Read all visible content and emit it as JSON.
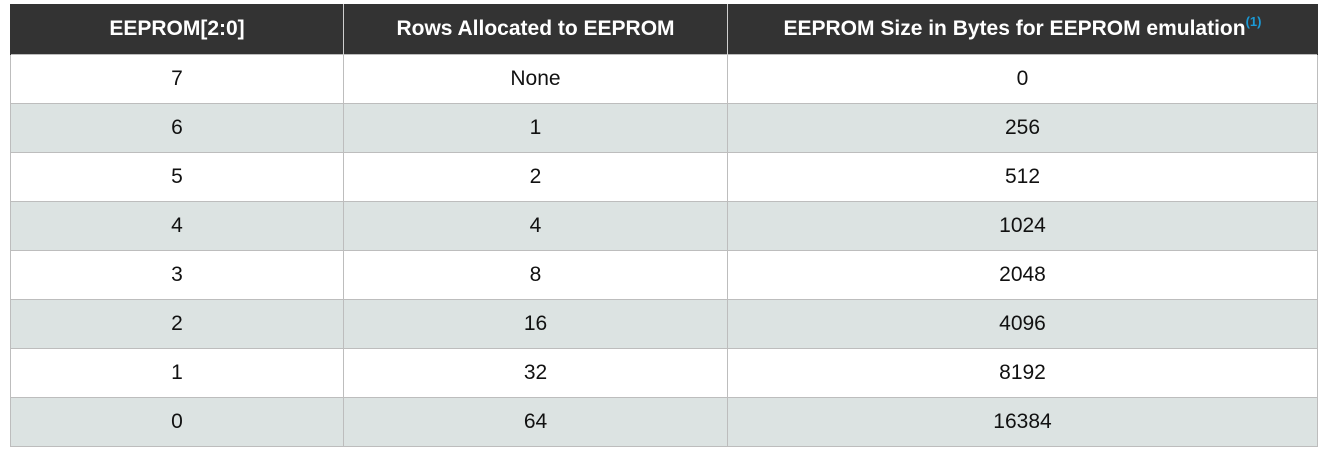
{
  "table": {
    "headers": [
      {
        "label": "EEPROM[2:0]",
        "note": ""
      },
      {
        "label": "Rows Allocated to EEPROM",
        "note": ""
      },
      {
        "label": "EEPROM Size in Bytes for EEPROM emulation",
        "note": "(1)"
      }
    ],
    "rows": [
      [
        "7",
        "None",
        "0"
      ],
      [
        "6",
        "1",
        "256"
      ],
      [
        "5",
        "2",
        "512"
      ],
      [
        "4",
        "4",
        "1024"
      ],
      [
        "3",
        "8",
        "2048"
      ],
      [
        "2",
        "16",
        "4096"
      ],
      [
        "1",
        "32",
        "8192"
      ],
      [
        "0",
        "64",
        "16384"
      ]
    ]
  },
  "colors": {
    "header_bg": "#333333",
    "header_text": "#ffffff",
    "footnote_link": "#1b9ad6",
    "row_odd": "#ffffff",
    "row_even": "#dce3e2"
  }
}
